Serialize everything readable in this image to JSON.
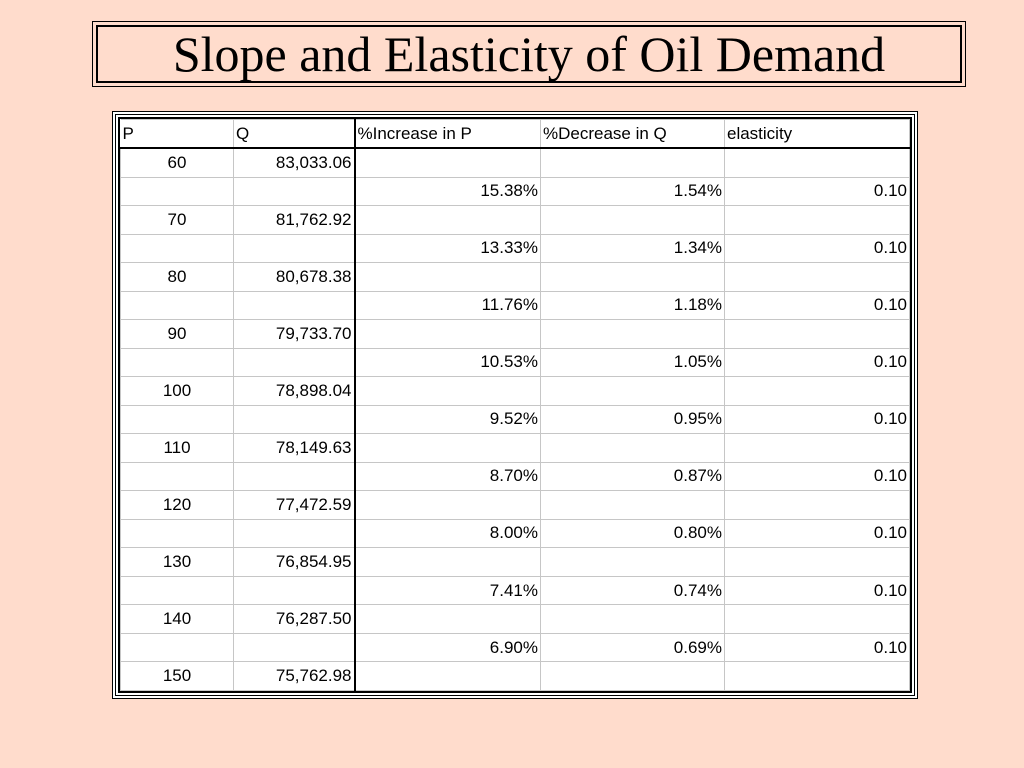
{
  "title": "Slope and Elasticity of Oil Demand",
  "table": {
    "headers": [
      "P",
      "Q",
      "%Increase in P",
      "%Decrease in Q",
      "elasticity"
    ],
    "rows": [
      {
        "p": "60",
        "q": "83,033.06",
        "inc": "",
        "dec": "",
        "el": ""
      },
      {
        "p": "",
        "q": "",
        "inc": "15.38%",
        "dec": "1.54%",
        "el": "0.10"
      },
      {
        "p": "70",
        "q": "81,762.92",
        "inc": "",
        "dec": "",
        "el": ""
      },
      {
        "p": "",
        "q": "",
        "inc": "13.33%",
        "dec": "1.34%",
        "el": "0.10"
      },
      {
        "p": "80",
        "q": "80,678.38",
        "inc": "",
        "dec": "",
        "el": ""
      },
      {
        "p": "",
        "q": "",
        "inc": "11.76%",
        "dec": "1.18%",
        "el": "0.10"
      },
      {
        "p": "90",
        "q": "79,733.70",
        "inc": "",
        "dec": "",
        "el": ""
      },
      {
        "p": "",
        "q": "",
        "inc": "10.53%",
        "dec": "1.05%",
        "el": "0.10"
      },
      {
        "p": "100",
        "q": "78,898.04",
        "inc": "",
        "dec": "",
        "el": ""
      },
      {
        "p": "",
        "q": "",
        "inc": "9.52%",
        "dec": "0.95%",
        "el": "0.10"
      },
      {
        "p": "110",
        "q": "78,149.63",
        "inc": "",
        "dec": "",
        "el": ""
      },
      {
        "p": "",
        "q": "",
        "inc": "8.70%",
        "dec": "0.87%",
        "el": "0.10"
      },
      {
        "p": "120",
        "q": "77,472.59",
        "inc": "",
        "dec": "",
        "el": ""
      },
      {
        "p": "",
        "q": "",
        "inc": "8.00%",
        "dec": "0.80%",
        "el": "0.10"
      },
      {
        "p": "130",
        "q": "76,854.95",
        "inc": "",
        "dec": "",
        "el": ""
      },
      {
        "p": "",
        "q": "",
        "inc": "7.41%",
        "dec": "0.74%",
        "el": "0.10"
      },
      {
        "p": "140",
        "q": "76,287.50",
        "inc": "",
        "dec": "",
        "el": ""
      },
      {
        "p": "",
        "q": "",
        "inc": "6.90%",
        "dec": "0.69%",
        "el": "0.10"
      },
      {
        "p": "150",
        "q": "75,762.98",
        "inc": "",
        "dec": "",
        "el": ""
      }
    ]
  },
  "colors": {
    "background": "#ffdccc",
    "table_background": "#ffffff",
    "grid": "#c6c6c6"
  }
}
